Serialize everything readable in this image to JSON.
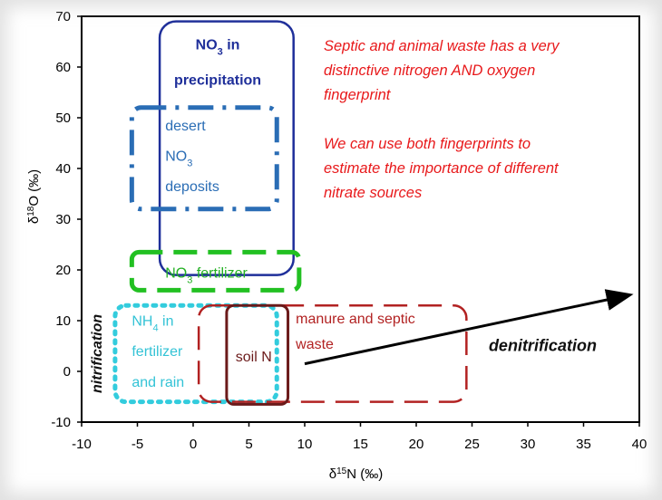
{
  "chart_data": {
    "type": "scatter",
    "x_axis": {
      "label_prefix": "δ",
      "label_sup": "15",
      "label_suffix": "N (‰)",
      "ticks": [
        "-10",
        "-5",
        "0",
        "5",
        "10",
        "15",
        "20",
        "25",
        "30",
        "35",
        "40"
      ],
      "range": [
        -10,
        40
      ]
    },
    "y_axis": {
      "label_prefix": "δ",
      "label_sup": "18",
      "label_suffix": "O (‰)",
      "ticks": [
        "-10",
        "0",
        "10",
        "20",
        "30",
        "40",
        "50",
        "60",
        "70"
      ],
      "range": [
        -10,
        70
      ]
    },
    "regions": [
      {
        "id": "no3-precip",
        "x": [
          -3,
          9
        ],
        "y": [
          19,
          69
        ],
        "color": "#1f2f9a",
        "style": "solid",
        "width": 2.5,
        "radius": 18,
        "lines": [
          {
            "text": "NO",
            "sub": "3",
            "tail": " in",
            "x": 2.2,
            "y": 63.5,
            "bold": true
          },
          {
            "text": "precipitation",
            "x": 2.2,
            "y": 56.5,
            "bold": true
          }
        ],
        "text_color": "#1f2f9a"
      },
      {
        "id": "desert-no3",
        "x": [
          -5.5,
          7.5
        ],
        "y": [
          32,
          52
        ],
        "color": "#2a6db5",
        "style": "dashdot",
        "width": 5,
        "radius": 10,
        "lines": [
          {
            "text": "desert",
            "x": -2.5,
            "y": 47.5
          },
          {
            "text": "NO",
            "sub": "3",
            "x": -2.5,
            "y": 41.5
          },
          {
            "text": "deposits",
            "x": -2.5,
            "y": 35.5
          }
        ],
        "text_color": "#2a6db5"
      },
      {
        "id": "no3-fertilizer",
        "x": [
          -5.5,
          9.5
        ],
        "y": [
          16,
          23.5
        ],
        "color": "#22c022",
        "style": "dash",
        "width": 5,
        "radius": 8,
        "lines": [
          {
            "text": "NO",
            "sub": "3",
            "tail": " fertilizer",
            "x": -2.5,
            "y": 18.5
          }
        ],
        "text_color": "#22b022"
      },
      {
        "id": "nh4-fertilizer",
        "x": [
          -7,
          7.5
        ],
        "y": [
          -6,
          13
        ],
        "color": "#33ccdd",
        "style": "dot",
        "width": 5,
        "radius": 12,
        "lines": [
          {
            "text": "NH",
            "sub": "4",
            "tail": " in",
            "x": -5.5,
            "y": 9
          },
          {
            "text": "fertilizer",
            "x": -5.5,
            "y": 3
          },
          {
            "text": "and rain",
            "x": -5.5,
            "y": -3
          }
        ],
        "text_color": "#33c3d6"
      },
      {
        "id": "manure-septic",
        "x": [
          0.5,
          24.5
        ],
        "y": [
          -6,
          13
        ],
        "color": "#b22222",
        "style": "dash",
        "width": 2.5,
        "radius": 14,
        "lines": [
          {
            "text": "manure and septic",
            "x": 9.2,
            "y": 9.5
          },
          {
            "text": "waste",
            "x": 9.2,
            "y": 4.5
          }
        ],
        "text_color": "#b22222"
      },
      {
        "id": "soil-n",
        "x": [
          3,
          8.5
        ],
        "y": [
          -6.5,
          13
        ],
        "color": "#6b1a1a",
        "style": "solid",
        "width": 3,
        "radius": 8,
        "lines": [
          {
            "text": "soil N",
            "x": 3.8,
            "y": 2
          }
        ],
        "text_color": "#6b1a1a"
      }
    ],
    "arrows": [
      {
        "id": "denitrification-arrow",
        "from": [
          10,
          1.5
        ],
        "to": [
          39,
          15
        ]
      }
    ],
    "annotations": [
      {
        "id": "denitrification-label",
        "text": "denitrification",
        "x": 26.5,
        "y": 4,
        "bold": true,
        "italic": true,
        "color": "#111111"
      },
      {
        "id": "nitrification-label",
        "text": "nitrification",
        "x": -8.2,
        "y": 3.5,
        "bold": true,
        "italic": true,
        "color": "#111111",
        "rotate": -90
      }
    ],
    "notes": [
      {
        "id": "note-line-1",
        "text": "Septic and animal waste has a very"
      },
      {
        "id": "note-line-2",
        "text": "distinctive nitrogen AND oxygen"
      },
      {
        "id": "note-line-3",
        "text": "fingerprint"
      },
      {
        "id": "note-line-4",
        "text": ""
      },
      {
        "id": "note-line-5",
        "text": "We can use both fingerprints to"
      },
      {
        "id": "note-line-6",
        "text": "estimate the importance of different"
      },
      {
        "id": "note-line-7",
        "text": "nitrate sources"
      }
    ],
    "note_color": "#e8191b"
  }
}
